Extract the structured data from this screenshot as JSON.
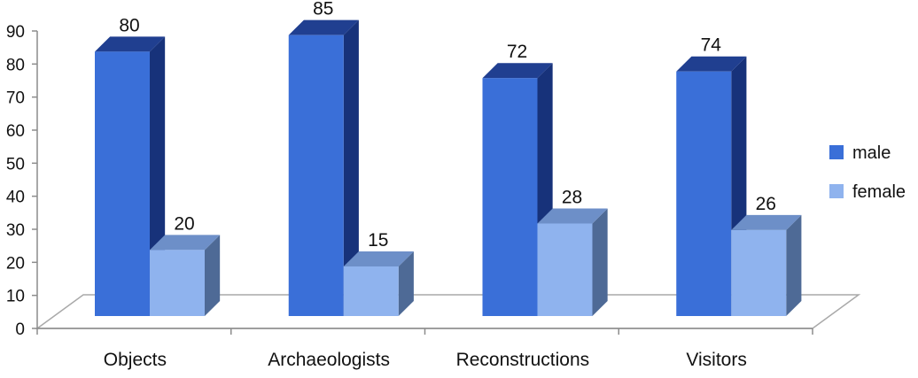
{
  "chart_data": {
    "type": "bar",
    "title": "",
    "xlabel": "",
    "ylabel": "",
    "categories": [
      "Objects",
      "Archaeologists",
      "Reconstructions",
      "Visitors"
    ],
    "series": [
      {
        "name": "male",
        "values": [
          80,
          85,
          72,
          74
        ],
        "color": "#3a6fd8",
        "top_color": "#203f90",
        "side_color": "#17327a"
      },
      {
        "name": "female",
        "values": [
          20,
          15,
          28,
          26
        ],
        "color": "#8fb3ee",
        "top_color": "#6d8fc8",
        "side_color": "#4e6a96"
      }
    ],
    "ylim": [
      0,
      90
    ],
    "yticks": [
      0,
      10,
      20,
      30,
      40,
      50,
      60,
      70,
      80,
      90
    ],
    "grid": false,
    "legend_position": "right"
  }
}
